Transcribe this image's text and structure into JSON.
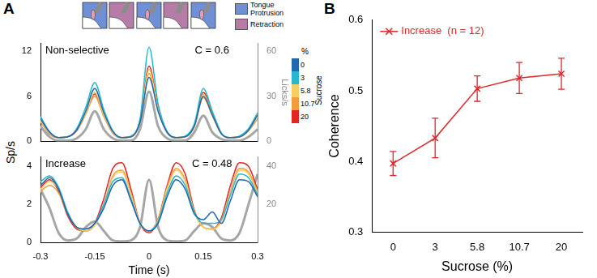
{
  "chart_data": [
    {
      "type": "line",
      "title": "A",
      "annotations": [
        "Non-selective",
        "C = 0.6"
      ],
      "y_label": "Sp/s",
      "y2_label": "Licks/s",
      "legend_title": "Sucrose",
      "legend_unit": "%",
      "icon_legend": [
        {
          "name": "Tongue Protrusion",
          "color": "#6f8fd6"
        },
        {
          "name": "Retraction",
          "color": "#b77ba8"
        }
      ],
      "icons": [
        "Tongue Protrusion",
        "Retraction",
        "Tongue Protrusion",
        "Retraction",
        "Tongue Protrusion"
      ],
      "tick_labels": "y",
      "xlim": [
        -0.3,
        0.3
      ],
      "ylim": [
        0,
        13
      ],
      "yticks": [
        0,
        6,
        12
      ],
      "y2lim": [
        0,
        65
      ],
      "y2ticks": [
        0,
        30,
        60
      ],
      "x": [
        -0.3,
        -0.275,
        -0.25,
        -0.225,
        -0.2,
        -0.175,
        -0.15,
        -0.125,
        -0.1,
        -0.075,
        -0.05,
        -0.025,
        0,
        0.025,
        0.05,
        0.075,
        0.1,
        0.125,
        0.15,
        0.175,
        0.2,
        0.225,
        0.25,
        0.275,
        0.3
      ],
      "series": [
        {
          "name": "0",
          "color": "#2066b0",
          "values": [
            3.0,
            1.2,
            0.5,
            0.6,
            1.5,
            4.0,
            7.0,
            3.8,
            1.3,
            0.5,
            0.6,
            2.5,
            8.5,
            4.0,
            1.2,
            0.5,
            0.6,
            2.0,
            6.0,
            3.5,
            1.0,
            0.5,
            0.6,
            1.5,
            3.5
          ]
        },
        {
          "name": "3",
          "color": "#27b8d0",
          "values": [
            3.3,
            1.3,
            0.5,
            0.6,
            1.7,
            4.5,
            7.8,
            4.2,
            1.4,
            0.5,
            0.7,
            3.0,
            12.5,
            5.0,
            1.3,
            0.5,
            0.7,
            2.3,
            7.0,
            4.0,
            1.1,
            0.5,
            0.7,
            1.7,
            3.8
          ]
        },
        {
          "name": "5.8",
          "color": "#f5cf63",
          "values": [
            2.8,
            1.1,
            0.5,
            0.6,
            1.5,
            3.8,
            6.5,
            3.5,
            1.2,
            0.5,
            0.6,
            2.6,
            9.5,
            4.3,
            1.2,
            0.5,
            0.6,
            2.0,
            6.2,
            3.6,
            1.0,
            0.5,
            0.6,
            1.5,
            3.2
          ]
        },
        {
          "name": "10.7",
          "color": "#f39a3b",
          "values": [
            2.6,
            1.0,
            0.5,
            0.6,
            1.4,
            3.6,
            6.0,
            3.3,
            1.1,
            0.5,
            0.6,
            2.5,
            9.0,
            4.1,
            1.1,
            0.5,
            0.6,
            1.9,
            5.8,
            3.4,
            1.0,
            0.5,
            0.6,
            1.4,
            3.0
          ]
        },
        {
          "name": "20",
          "color": "#e3261f",
          "values": [
            2.7,
            1.0,
            0.5,
            0.6,
            1.4,
            3.7,
            6.3,
            3.4,
            1.1,
            0.5,
            0.6,
            2.7,
            10.0,
            4.5,
            1.2,
            0.5,
            0.6,
            2.0,
            6.5,
            3.7,
            1.0,
            0.5,
            0.6,
            1.5,
            3.1
          ]
        },
        {
          "color": "#a6a6a6",
          "axis": "y2",
          "values": [
            10,
            3,
            0.5,
            0.5,
            2,
            8,
            20,
            8,
            2,
            0.5,
            0.5,
            8,
            33,
            10,
            2,
            0.5,
            0.5,
            6,
            17,
            6,
            1.5,
            0.5,
            0.5,
            3,
            8
          ]
        }
      ]
    },
    {
      "type": "line",
      "annotations": [
        "Increase",
        "C = 0.48"
      ],
      "x_label": "Time (s)",
      "xlim": [
        -0.3,
        0.3
      ],
      "xticks": [
        -0.3,
        -0.15,
        0,
        0.15,
        0.3
      ],
      "ylim": [
        0,
        4.5
      ],
      "yticks": [
        0,
        2,
        4
      ],
      "y2lim": [
        0,
        45
      ],
      "y2ticks": [
        20,
        40
      ],
      "x": [
        -0.3,
        -0.275,
        -0.25,
        -0.225,
        -0.2,
        -0.175,
        -0.15,
        -0.125,
        -0.1,
        -0.075,
        -0.05,
        -0.025,
        0,
        0.025,
        0.05,
        0.075,
        0.1,
        0.125,
        0.15,
        0.175,
        0.2,
        0.225,
        0.25,
        0.275,
        0.3
      ],
      "series": [
        {
          "color": "#2066b0",
          "values": [
            3.0,
            3.4,
            2.8,
            1.5,
            0.8,
            0.7,
            1.0,
            1.8,
            3.0,
            3.3,
            2.2,
            1.0,
            0.6,
            1.0,
            2.4,
            3.3,
            2.8,
            1.5,
            1.2,
            1.6,
            1.0,
            2.2,
            3.3,
            3.2,
            2.4
          ]
        },
        {
          "color": "#27b8d0",
          "values": [
            3.2,
            3.5,
            2.9,
            1.6,
            0.8,
            0.7,
            1.0,
            2.0,
            3.2,
            3.4,
            2.3,
            1.0,
            0.6,
            1.1,
            2.6,
            3.5,
            3.0,
            1.6,
            1.0,
            1.0,
            1.2,
            2.5,
            3.6,
            3.4,
            2.5
          ]
        },
        {
          "color": "#f5cf63",
          "values": [
            2.8,
            3.2,
            2.8,
            1.6,
            0.8,
            0.6,
            0.9,
            2.0,
            3.4,
            3.7,
            2.5,
            1.0,
            0.6,
            1.1,
            2.8,
            3.8,
            3.2,
            1.6,
            0.8,
            0.7,
            1.1,
            2.6,
            3.8,
            3.6,
            2.6
          ]
        },
        {
          "color": "#f39a3b",
          "values": [
            2.7,
            3.0,
            2.6,
            1.5,
            0.8,
            0.6,
            0.9,
            2.0,
            3.5,
            3.8,
            2.6,
            1.0,
            0.6,
            1.2,
            2.9,
            3.9,
            3.3,
            1.6,
            0.8,
            0.7,
            1.2,
            2.7,
            3.9,
            3.7,
            2.7
          ]
        },
        {
          "color": "#e3261f",
          "values": [
            2.9,
            3.3,
            2.7,
            1.4,
            0.7,
            0.6,
            1.0,
            2.3,
            3.9,
            4.2,
            2.8,
            1.0,
            0.5,
            1.2,
            3.0,
            4.2,
            3.6,
            1.7,
            0.8,
            0.7,
            1.3,
            3.0,
            4.2,
            4.0,
            2.8
          ]
        },
        {
          "color": "#a6a6a6",
          "axis": "y2",
          "values": [
            28,
            18,
            5,
            1,
            2,
            8,
            11,
            6,
            1,
            0.5,
            1,
            8,
            33,
            8,
            1,
            0.5,
            1,
            6,
            10,
            8,
            2,
            1,
            5,
            20,
            36
          ]
        }
      ]
    },
    {
      "type": "line",
      "title": "B",
      "x_label": "Sucrose (%)",
      "y_label": "Coherence",
      "categories": [
        "0",
        "3",
        "5.8",
        "10.7",
        "20"
      ],
      "ylim": [
        0.3,
        0.6
      ],
      "yticks": [
        0.3,
        0.4,
        0.5,
        0.6
      ],
      "legend": "upper left",
      "series": [
        {
          "name": "Increase  (n = 12)",
          "color": "#e0262a",
          "marker": "x",
          "values": [
            0.397,
            0.433,
            0.503,
            0.518,
            0.524
          ],
          "errors": [
            0.017,
            0.028,
            0.018,
            0.022,
            0.022
          ]
        }
      ]
    }
  ]
}
